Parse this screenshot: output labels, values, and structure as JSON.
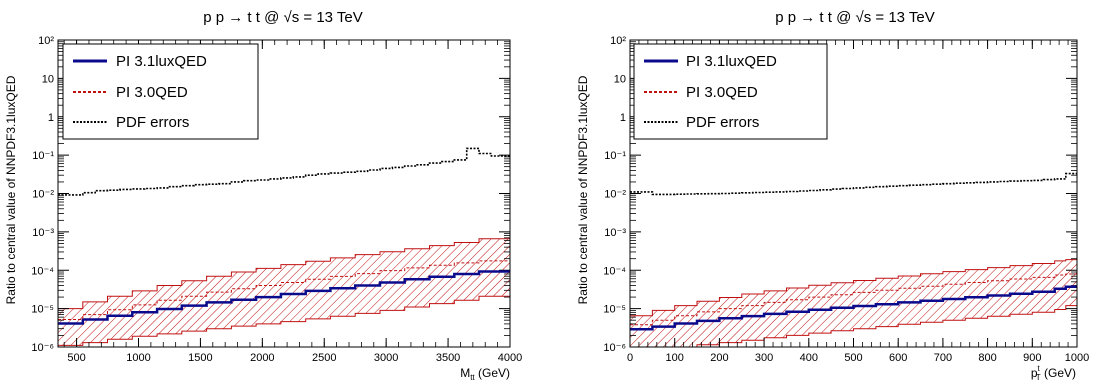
{
  "chart_data": [
    {
      "type": "line",
      "title": "p p → t t @ √s = 13 TeV",
      "xlabel": "M",
      "xlabel_sub": "tt",
      "xlabel_unit": " (GeV)",
      "ylabel": "Ratio to central value of NNPDF3.1luxQED",
      "xlim": [
        350,
        4000
      ],
      "ylim": [
        1e-06,
        100
      ],
      "yscale": "log",
      "x_ticks": [
        500,
        1000,
        1500,
        2000,
        2500,
        3000,
        3500,
        4000
      ],
      "x_tick_labels": [
        "500",
        "1000",
        "1500",
        "2000",
        "2500",
        "3000",
        "3500",
        "4000"
      ],
      "legend": {
        "position": "top-left",
        "entries": [
          "PI 3.1luxQED",
          "PI 3.0QED",
          "PDF errors"
        ]
      },
      "bin_edges": [
        350,
        450,
        550,
        650,
        750,
        850,
        950,
        1050,
        1150,
        1250,
        1350,
        1450,
        1550,
        1650,
        1750,
        1850,
        1950,
        2050,
        2150,
        2250,
        2350,
        2450,
        2550,
        2650,
        2750,
        2850,
        2950,
        3050,
        3150,
        3250,
        3350,
        3450,
        3550,
        3650,
        3750,
        3850,
        4000
      ],
      "series": [
        {
          "name": "PI 3.1luxQED",
          "color": "#0a0a8c",
          "values": [
            4.1e-06,
            4.1e-06,
            5.2e-06,
            5.2e-06,
            6.5e-06,
            6.5e-06,
            8e-06,
            8e-06,
            9.8e-06,
            9.8e-06,
            1.2e-05,
            1.2e-05,
            1.45e-05,
            1.45e-05,
            1.7e-05,
            1.7e-05,
            2e-05,
            2e-05,
            2.4e-05,
            2.4e-05,
            2.9e-05,
            2.9e-05,
            3.4e-05,
            3.4e-05,
            4e-05,
            4e-05,
            4.8e-05,
            4.8e-05,
            5.8e-05,
            5.8e-05,
            6.8e-05,
            6.8e-05,
            8e-05,
            8e-05,
            9.3e-05,
            9.3e-05
          ]
        },
        {
          "name": "PI 3.0QED",
          "color": "#c01010",
          "values": [
            5.2e-06,
            5.2e-06,
            7e-06,
            7e-06,
            9.4e-06,
            9.4e-06,
            1.25e-05,
            1.25e-05,
            1.65e-05,
            1.65e-05,
            2.1e-05,
            2.1e-05,
            2.7e-05,
            2.7e-05,
            3.3e-05,
            3.3e-05,
            4e-05,
            4e-05,
            4.8e-05,
            4.8e-05,
            5.8e-05,
            5.8e-05,
            6.9e-05,
            6.9e-05,
            8.2e-05,
            8.2e-05,
            9.8e-05,
            9.8e-05,
            0.000115,
            0.000115,
            0.000135,
            0.000135,
            0.000155,
            0.000155,
            0.000175,
            0.000175
          ],
          "band_lower": [
            1.1e-06,
            1.1e-06,
            1.3e-06,
            1.3e-06,
            1.6e-06,
            1.6e-06,
            1.9e-06,
            1.9e-06,
            2.2e-06,
            2.2e-06,
            2.6e-06,
            2.6e-06,
            3e-06,
            3e-06,
            3.5e-06,
            3.5e-06,
            4e-06,
            4e-06,
            4.6e-06,
            4.6e-06,
            5.4e-06,
            5.4e-06,
            6.3e-06,
            6.3e-06,
            7.5e-06,
            7.5e-06,
            9e-06,
            9e-06,
            1.1e-05,
            1.1e-05,
            1.35e-05,
            1.35e-05,
            1.65e-05,
            1.65e-05,
            2.1e-05,
            2.1e-05
          ],
          "band_upper": [
            1e-05,
            1e-05,
            1.5e-05,
            1.5e-05,
            2.1e-05,
            2.1e-05,
            2.9e-05,
            2.9e-05,
            4e-05,
            4e-05,
            5.3e-05,
            5.3e-05,
            7e-05,
            7e-05,
            9e-05,
            9e-05,
            0.000112,
            0.000112,
            0.00014,
            0.00014,
            0.000172,
            0.000172,
            0.00021,
            0.00021,
            0.000255,
            0.000255,
            0.000305,
            0.000305,
            0.000365,
            0.000365,
            0.00044,
            0.00044,
            0.00053,
            0.00053,
            0.00066,
            0.00066
          ]
        },
        {
          "name": "PDF errors",
          "color": "#000000",
          "values": [
            0.0092,
            0.0092,
            0.0105,
            0.0118,
            0.0122,
            0.0128,
            0.0132,
            0.0135,
            0.014,
            0.015,
            0.016,
            0.017,
            0.0175,
            0.018,
            0.02,
            0.0215,
            0.0225,
            0.024,
            0.0255,
            0.027,
            0.03,
            0.0325,
            0.034,
            0.036,
            0.038,
            0.041,
            0.045,
            0.048,
            0.052,
            0.056,
            0.062,
            0.068,
            0.075,
            0.15,
            0.11,
            0.095
          ]
        }
      ]
    },
    {
      "type": "line",
      "title": "p p → t t @ √s = 13 TeV",
      "xlabel": "p",
      "xlabel_sup": "t",
      "xlabel_sub": "T",
      "xlabel_unit": " (GeV)",
      "ylabel": "Ratio to central value of NNPDF3.1luxQED",
      "xlim": [
        0,
        1000
      ],
      "ylim": [
        1e-06,
        100
      ],
      "yscale": "log",
      "x_ticks": [
        0,
        100,
        200,
        300,
        400,
        500,
        600,
        700,
        800,
        900,
        1000
      ],
      "x_tick_labels": [
        "0",
        "100",
        "200",
        "300",
        "400",
        "500",
        "600",
        "700",
        "800",
        "900",
        "1000"
      ],
      "legend": {
        "position": "top-left",
        "entries": [
          "PI 3.1luxQED",
          "PI 3.0QED",
          "PDF errors"
        ]
      },
      "bin_edges": [
        0,
        25,
        50,
        75,
        100,
        125,
        150,
        175,
        200,
        225,
        250,
        275,
        300,
        325,
        350,
        375,
        400,
        425,
        450,
        475,
        500,
        525,
        550,
        575,
        600,
        625,
        650,
        675,
        700,
        725,
        750,
        775,
        800,
        825,
        850,
        875,
        900,
        925,
        950,
        975,
        1000
      ],
      "series": [
        {
          "name": "PI 3.1luxQED",
          "color": "#0a0a8c",
          "values": [
            2.9e-06,
            2.9e-06,
            3.4e-06,
            3.4e-06,
            4.1e-06,
            4.1e-06,
            4.8e-06,
            4.8e-06,
            5.6e-06,
            5.6e-06,
            6.4e-06,
            6.4e-06,
            7.3e-06,
            7.3e-06,
            8.3e-06,
            8.3e-06,
            9.4e-06,
            9.4e-06,
            1.05e-05,
            1.05e-05,
            1.17e-05,
            1.17e-05,
            1.3e-05,
            1.3e-05,
            1.45e-05,
            1.45e-05,
            1.6e-05,
            1.6e-05,
            1.78e-05,
            1.78e-05,
            1.98e-05,
            1.98e-05,
            2.2e-05,
            2.2e-05,
            2.45e-05,
            2.45e-05,
            2.75e-05,
            2.75e-05,
            3.3e-05,
            3.7e-05
          ]
        },
        {
          "name": "PI 3.0QED",
          "color": "#c01010",
          "values": [
            3.8e-06,
            3.8e-06,
            5e-06,
            5e-06,
            6.5e-06,
            6.5e-06,
            8.2e-06,
            8.2e-06,
            1e-05,
            1e-05,
            1.2e-05,
            1.2e-05,
            1.45e-05,
            1.45e-05,
            1.7e-05,
            1.7e-05,
            2e-05,
            2e-05,
            2.3e-05,
            2.3e-05,
            2.65e-05,
            2.65e-05,
            3e-05,
            3e-05,
            3.4e-05,
            3.4e-05,
            3.85e-05,
            3.85e-05,
            4.3e-05,
            4.3e-05,
            4.8e-05,
            4.8e-05,
            5.3e-05,
            5.3e-05,
            5.9e-05,
            5.9e-05,
            6.5e-05,
            6.5e-05,
            7.5e-05,
            8e-05
          ],
          "band_lower": [
            8e-07,
            8e-07,
            9e-07,
            9e-07,
            1e-06,
            1e-06,
            1.15e-06,
            1.15e-06,
            1.3e-06,
            1.3e-06,
            1.5e-06,
            1.5e-06,
            1.75e-06,
            1.75e-06,
            2e-06,
            2e-06,
            2.3e-06,
            2.3e-06,
            2.65e-06,
            2.65e-06,
            3e-06,
            3e-06,
            3.4e-06,
            3.4e-06,
            3.9e-06,
            3.9e-06,
            4.4e-06,
            4.4e-06,
            5e-06,
            5e-06,
            5.6e-06,
            5.6e-06,
            6.3e-06,
            6.3e-06,
            7.1e-06,
            7.1e-06,
            8e-06,
            8e-06,
            9.5e-06,
            1.2e-05
          ],
          "band_upper": [
            6.5e-06,
            6.5e-06,
            9e-06,
            9e-06,
            1.2e-05,
            1.2e-05,
            1.55e-05,
            1.55e-05,
            1.95e-05,
            1.95e-05,
            2.4e-05,
            2.4e-05,
            2.9e-05,
            2.9e-05,
            3.45e-05,
            3.45e-05,
            4.05e-05,
            4.05e-05,
            4.7e-05,
            4.7e-05,
            5.4e-05,
            5.4e-05,
            6.2e-05,
            6.2e-05,
            7.1e-05,
            7.1e-05,
            8.1e-05,
            8.1e-05,
            9.2e-05,
            9.2e-05,
            0.000104,
            0.000104,
            0.000117,
            0.000117,
            0.000132,
            0.000132,
            0.00015,
            0.00015,
            0.000175,
            0.00019
          ]
        },
        {
          "name": "PDF errors",
          "color": "#000000",
          "values": [
            0.011,
            0.011,
            0.0095,
            0.0095,
            0.0096,
            0.0097,
            0.0098,
            0.0099,
            0.01,
            0.0102,
            0.0104,
            0.0106,
            0.0108,
            0.011,
            0.0113,
            0.0116,
            0.012,
            0.0125,
            0.013,
            0.0135,
            0.014,
            0.0145,
            0.015,
            0.0155,
            0.016,
            0.0165,
            0.017,
            0.0175,
            0.018,
            0.0185,
            0.019,
            0.0195,
            0.02,
            0.0205,
            0.021,
            0.0215,
            0.022,
            0.023,
            0.024,
            0.033
          ]
        }
      ]
    }
  ]
}
